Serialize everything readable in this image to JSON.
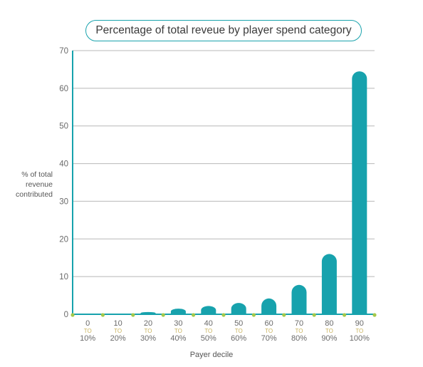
{
  "chart_data": {
    "type": "bar",
    "title": "Percentage of total reveue by player spend category",
    "xlabel": "Payer decile",
    "ylabel_lines": [
      "% of total",
      "revenue",
      "contributed"
    ],
    "ylim": [
      0,
      70
    ],
    "yticks": [
      0,
      10,
      20,
      30,
      40,
      50,
      60,
      70
    ],
    "grid": true,
    "legend": "none",
    "categories": [
      {
        "from": "0",
        "to_word": "TO",
        "to": "10%"
      },
      {
        "from": "10",
        "to_word": "TO",
        "to": "20%"
      },
      {
        "from": "20",
        "to_word": "TO",
        "to": "30%"
      },
      {
        "from": "30",
        "to_word": "TO",
        "to": "40%"
      },
      {
        "from": "40",
        "to_word": "TO",
        "to": "50%"
      },
      {
        "from": "50",
        "to_word": "TO",
        "to": "60%"
      },
      {
        "from": "60",
        "to_word": "TO",
        "to": "70%"
      },
      {
        "from": "70",
        "to_word": "TO",
        "to": "80%"
      },
      {
        "from": "80",
        "to_word": "TO",
        "to": "90%"
      },
      {
        "from": "90",
        "to_word": "TO",
        "to": "100%"
      }
    ],
    "values": [
      0,
      0.1,
      0.6,
      1.5,
      2.2,
      3,
      4.2,
      7.8,
      16,
      64.5
    ],
    "colors": {
      "bar": "#17a2ad",
      "axis": "#17a2ad",
      "grid": "#b8b8b8",
      "tick_text": "#6a6a6a",
      "to_text": "#c9b25b",
      "dot": "#a5c94a"
    }
  }
}
